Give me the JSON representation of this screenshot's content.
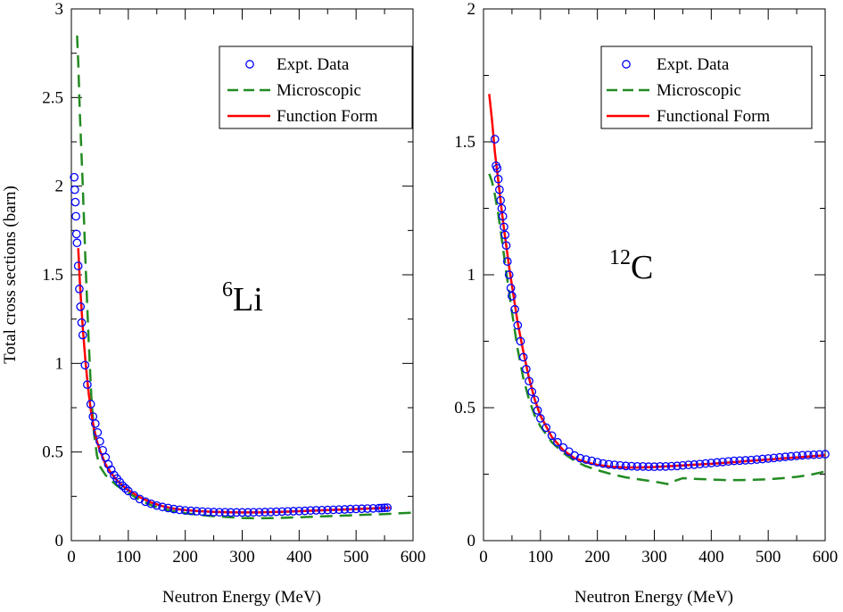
{
  "figure": {
    "ylabel": "Total cross sections (barn)"
  },
  "chart_data": [
    {
      "type": "scatter",
      "panel": "left",
      "annotation": {
        "superscript": "6",
        "text": "Li"
      },
      "xlabel": "Neutron Energy (MeV)",
      "ylabel": "Total cross sections (barn)",
      "xlim": [
        0,
        600
      ],
      "ylim": [
        0,
        3
      ],
      "xticks": [
        0,
        100,
        200,
        300,
        400,
        500,
        600
      ],
      "xtick_labels": [
        "0",
        "100",
        "200",
        "300",
        "400",
        "500",
        "600"
      ],
      "yticks": [
        0,
        0.5,
        1,
        1.5,
        2,
        2.5,
        3
      ],
      "ytick_labels": [
        "0",
        "0.5",
        "1",
        "1.5",
        "2",
        "2.5",
        "3"
      ],
      "legend": {
        "placement": "top-right",
        "entries": [
          {
            "label": "Expt. Data",
            "style": "circle",
            "color": "#0000ff"
          },
          {
            "label": "Microscopic",
            "style": "dashed",
            "color": "#228b22"
          },
          {
            "label": "Function Form",
            "style": "solid",
            "color": "#ff0000"
          }
        ]
      },
      "series": [
        {
          "name": "Expt. Data",
          "kind": "markers",
          "color": "#0000ff",
          "x": [
            5,
            6,
            7,
            8,
            9,
            10,
            12,
            14,
            16,
            18,
            20,
            24,
            28,
            34,
            38,
            42,
            46,
            50,
            55,
            60,
            65,
            70,
            75,
            80,
            85,
            90,
            95,
            100,
            110,
            120,
            130,
            140,
            150,
            160,
            170,
            180,
            190,
            200,
            210,
            220,
            230,
            240,
            250,
            260,
            270,
            280,
            290,
            300,
            310,
            320,
            330,
            340,
            350,
            360,
            370,
            380,
            390,
            400,
            410,
            420,
            430,
            440,
            450,
            460,
            470,
            480,
            490,
            500,
            510,
            520,
            530,
            540,
            545,
            550,
            555
          ],
          "y": [
            2.05,
            1.98,
            1.91,
            1.83,
            1.73,
            1.68,
            1.55,
            1.42,
            1.32,
            1.23,
            1.16,
            0.99,
            0.88,
            0.77,
            0.7,
            0.66,
            0.61,
            0.56,
            0.51,
            0.47,
            0.43,
            0.4,
            0.37,
            0.35,
            0.33,
            0.31,
            0.295,
            0.28,
            0.255,
            0.235,
            0.22,
            0.208,
            0.198,
            0.19,
            0.184,
            0.178,
            0.174,
            0.17,
            0.168,
            0.166,
            0.164,
            0.162,
            0.161,
            0.16,
            0.16,
            0.159,
            0.159,
            0.159,
            0.159,
            0.16,
            0.16,
            0.161,
            0.162,
            0.163,
            0.164,
            0.165,
            0.166,
            0.167,
            0.168,
            0.17,
            0.171,
            0.172,
            0.173,
            0.174,
            0.175,
            0.176,
            0.178,
            0.179,
            0.18,
            0.181,
            0.182,
            0.183,
            0.184,
            0.185,
            0.186
          ]
        },
        {
          "name": "Microscopic",
          "kind": "dashed",
          "color": "#228b22",
          "x": [
            10,
            12,
            15,
            20,
            25,
            30,
            35,
            40,
            45,
            50,
            60,
            70,
            80,
            90,
            100,
            120,
            140,
            160,
            180,
            200,
            225,
            250,
            275,
            300,
            325,
            350,
            375,
            400,
            425,
            450,
            475,
            500,
            525,
            550,
            575,
            600
          ],
          "y": [
            2.85,
            2.7,
            2.4,
            2.0,
            1.55,
            1.15,
            0.82,
            0.6,
            0.48,
            0.42,
            0.37,
            0.34,
            0.31,
            0.29,
            0.27,
            0.23,
            0.2,
            0.18,
            0.165,
            0.155,
            0.145,
            0.138,
            0.133,
            0.128,
            0.126,
            0.127,
            0.129,
            0.132,
            0.135,
            0.138,
            0.141,
            0.144,
            0.147,
            0.15,
            0.154,
            0.158
          ]
        },
        {
          "name": "Function Form",
          "kind": "solid",
          "color": "#ff0000",
          "x": [
            12,
            15,
            20,
            25,
            30,
            35,
            40,
            45,
            50,
            60,
            70,
            80,
            90,
            100,
            120,
            140,
            160,
            180,
            200,
            225,
            250,
            275,
            300,
            325,
            350,
            375,
            400,
            425,
            450,
            475,
            500,
            525,
            550,
            560
          ],
          "y": [
            1.65,
            1.45,
            1.2,
            1.0,
            0.84,
            0.72,
            0.63,
            0.56,
            0.51,
            0.43,
            0.38,
            0.34,
            0.31,
            0.285,
            0.245,
            0.215,
            0.195,
            0.18,
            0.172,
            0.166,
            0.162,
            0.16,
            0.159,
            0.159,
            0.161,
            0.163,
            0.166,
            0.169,
            0.172,
            0.175,
            0.178,
            0.181,
            0.184,
            0.186
          ]
        }
      ]
    },
    {
      "type": "scatter",
      "panel": "right",
      "annotation": {
        "superscript": "12",
        "text": "C"
      },
      "xlabel": "Neutron Energy (MeV)",
      "ylabel": "",
      "xlim": [
        0,
        600
      ],
      "ylim": [
        0,
        2
      ],
      "xticks": [
        0,
        100,
        200,
        300,
        400,
        500,
        600
      ],
      "xtick_labels": [
        "0",
        "100",
        "200",
        "300",
        "400",
        "500",
        "600"
      ],
      "yticks": [
        0,
        0.5,
        1,
        1.5,
        2
      ],
      "ytick_labels": [
        "0",
        "0.5",
        "1",
        "1.5",
        "2"
      ],
      "legend": {
        "placement": "top-right",
        "entries": [
          {
            "label": "Expt. Data",
            "style": "circle",
            "color": "#0000ff"
          },
          {
            "label": "Microscopic",
            "style": "dashed",
            "color": "#228b22"
          },
          {
            "label": "Functional Form",
            "style": "solid",
            "color": "#ff0000"
          }
        ]
      },
      "series": [
        {
          "name": "Expt. Data",
          "kind": "markers",
          "color": "#0000ff",
          "x": [
            20,
            22,
            24,
            26,
            28,
            30,
            32,
            34,
            36,
            38,
            40,
            42,
            45,
            48,
            50,
            55,
            60,
            65,
            70,
            75,
            80,
            85,
            90,
            95,
            100,
            110,
            120,
            130,
            140,
            150,
            160,
            170,
            180,
            190,
            200,
            210,
            220,
            230,
            240,
            250,
            260,
            270,
            280,
            290,
            300,
            310,
            320,
            330,
            340,
            350,
            360,
            370,
            380,
            390,
            400,
            410,
            420,
            430,
            440,
            450,
            460,
            470,
            480,
            490,
            500,
            510,
            520,
            530,
            540,
            550,
            560,
            570,
            580,
            590,
            600
          ],
          "y": [
            1.51,
            1.41,
            1.4,
            1.36,
            1.32,
            1.28,
            1.25,
            1.22,
            1.18,
            1.15,
            1.11,
            1.05,
            1.0,
            0.95,
            0.92,
            0.87,
            0.81,
            0.75,
            0.69,
            0.645,
            0.6,
            0.56,
            0.53,
            0.49,
            0.46,
            0.425,
            0.395,
            0.37,
            0.35,
            0.335,
            0.32,
            0.31,
            0.305,
            0.3,
            0.295,
            0.29,
            0.287,
            0.285,
            0.283,
            0.281,
            0.28,
            0.279,
            0.279,
            0.278,
            0.278,
            0.279,
            0.279,
            0.28,
            0.281,
            0.283,
            0.285,
            0.286,
            0.288,
            0.29,
            0.292,
            0.294,
            0.296,
            0.298,
            0.3,
            0.301,
            0.302,
            0.303,
            0.305,
            0.307,
            0.309,
            0.311,
            0.313,
            0.315,
            0.317,
            0.319,
            0.321,
            0.322,
            0.323,
            0.324,
            0.325
          ]
        },
        {
          "name": "Microscopic",
          "kind": "dashed",
          "color": "#228b22",
          "x": [
            10,
            15,
            20,
            25,
            30,
            35,
            40,
            50,
            60,
            70,
            80,
            90,
            100,
            120,
            140,
            160,
            180,
            200,
            225,
            250,
            275,
            300,
            325,
            330,
            350,
            375,
            400,
            425,
            450,
            475,
            500,
            525,
            550,
            575,
            600
          ],
          "y": [
            1.38,
            1.35,
            1.3,
            1.24,
            1.17,
            1.09,
            1.01,
            0.86,
            0.72,
            0.61,
            0.53,
            0.47,
            0.43,
            0.37,
            0.33,
            0.3,
            0.28,
            0.265,
            0.25,
            0.238,
            0.23,
            0.222,
            0.212,
            0.22,
            0.235,
            0.232,
            0.23,
            0.228,
            0.228,
            0.229,
            0.231,
            0.235,
            0.24,
            0.248,
            0.26
          ]
        },
        {
          "name": "Functional Form",
          "kind": "solid",
          "color": "#ff0000",
          "x": [
            10,
            15,
            20,
            25,
            30,
            35,
            40,
            45,
            50,
            60,
            70,
            80,
            90,
            100,
            120,
            140,
            160,
            180,
            200,
            225,
            250,
            275,
            300,
            325,
            350,
            375,
            400,
            425,
            450,
            475,
            500,
            525,
            550,
            575,
            600
          ],
          "y": [
            1.68,
            1.58,
            1.46,
            1.37,
            1.28,
            1.19,
            1.11,
            1.03,
            0.96,
            0.82,
            0.71,
            0.61,
            0.53,
            0.47,
            0.39,
            0.34,
            0.31,
            0.295,
            0.285,
            0.278,
            0.275,
            0.275,
            0.277,
            0.28,
            0.283,
            0.286,
            0.289,
            0.293,
            0.297,
            0.301,
            0.305,
            0.309,
            0.313,
            0.317,
            0.321
          ]
        }
      ]
    }
  ]
}
